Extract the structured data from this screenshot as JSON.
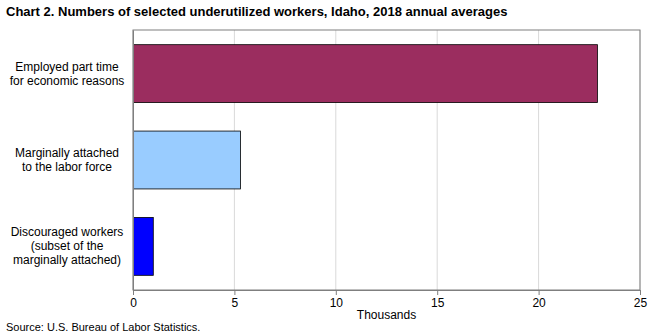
{
  "chart_data": {
    "type": "bar",
    "orientation": "horizontal",
    "title": "Chart 2. Numbers of selected underutilized workers, Idaho, 2018 annual averages",
    "categories": [
      "Employed part time for economic reasons",
      "Marginally attached to the labor force",
      "Discouraged workers (subset of the marginally attached)"
    ],
    "values": [
      22.9,
      5.3,
      1.0
    ],
    "colors": [
      "#9b2d5f",
      "#99ccff",
      "#0000ff"
    ],
    "xlabel": "Thousands",
    "xlim": [
      0,
      25
    ],
    "xticks": [
      0,
      5,
      10,
      15,
      20,
      25
    ],
    "grid": true,
    "source": "Source: U.S. Bureau of Labor Statistics."
  }
}
